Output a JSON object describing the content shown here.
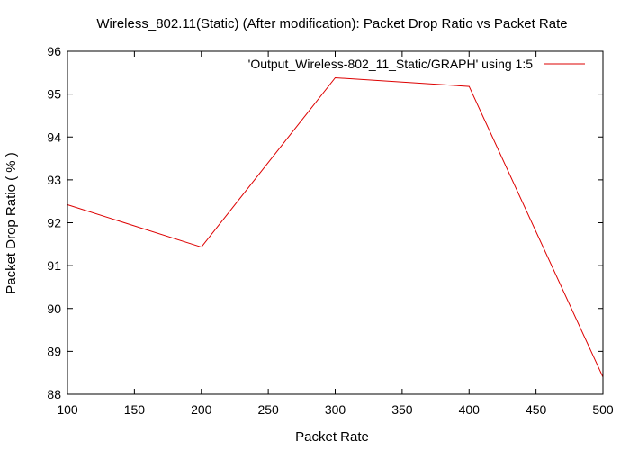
{
  "chart_data": {
    "type": "line",
    "title": "Wireless_802.11(Static) (After modification): Packet Drop Ratio vs Packet Rate",
    "xlabel": "Packet Rate",
    "ylabel": "Packet Drop Ratio ( % )",
    "xlim": [
      100,
      500
    ],
    "ylim": [
      88,
      96
    ],
    "xticks": [
      100,
      150,
      200,
      250,
      300,
      350,
      400,
      450,
      500
    ],
    "yticks": [
      88,
      89,
      90,
      91,
      92,
      93,
      94,
      95,
      96
    ],
    "xtick_labels": [
      "100",
      "150",
      "200",
      "250",
      "300",
      "350",
      "400",
      "450",
      "500"
    ],
    "ytick_labels": [
      "88",
      "89",
      "90",
      "91",
      "92",
      "93",
      "94",
      "95",
      "96"
    ],
    "grid": false,
    "legend_position": "top-right",
    "series": [
      {
        "name": "'Output_Wireless-802_11_Static/GRAPH' using 1:5",
        "color": "#dd0000",
        "x": [
          100,
          200,
          300,
          400,
          500
        ],
        "y": [
          92.42,
          91.43,
          95.38,
          95.18,
          88.4
        ]
      }
    ]
  }
}
